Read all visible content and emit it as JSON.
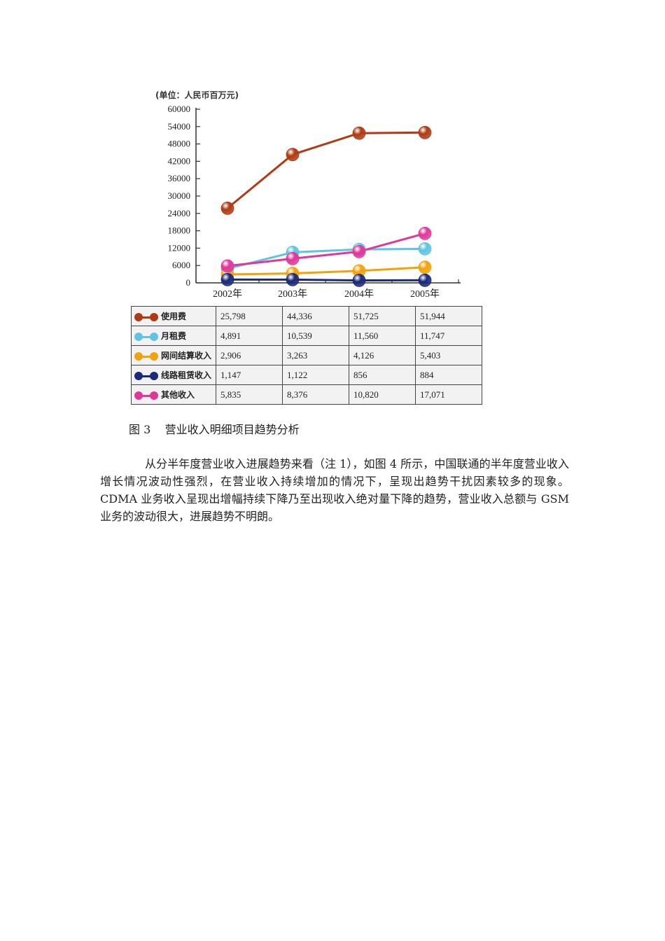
{
  "chart_data": {
    "type": "line",
    "unit_label": "(单位：人民币百万元)",
    "x": [
      "2002年",
      "2003年",
      "2004年",
      "2005年"
    ],
    "ylim": [
      0,
      60000
    ],
    "yticks": [
      "60000",
      "54000",
      "48000",
      "42000",
      "36000",
      "30000",
      "24000",
      "18000",
      "12000",
      "6000",
      "0"
    ],
    "series": [
      {
        "name": "使用费",
        "values": [
          25798,
          44336,
          51725,
          51944
        ],
        "display": [
          "25,798",
          "44,336",
          "51,725",
          "51,944"
        ],
        "color": "#b03a14"
      },
      {
        "name": "月租费",
        "values": [
          4891,
          10539,
          11560,
          11747
        ],
        "display": [
          "4,891",
          "10,539",
          "11,560",
          "11,747"
        ],
        "color": "#5fc4e0"
      },
      {
        "name": "网间结算收入",
        "values": [
          2906,
          3263,
          4126,
          5403
        ],
        "display": [
          "2,906",
          "3,263",
          "4,126",
          "5,403"
        ],
        "color": "#f2a20c"
      },
      {
        "name": "线路租赁收入",
        "values": [
          1147,
          1122,
          856,
          884
        ],
        "display": [
          "1,147",
          "1,122",
          "856",
          "884"
        ],
        "color": "#1a2a78"
      },
      {
        "name": "其他收入",
        "values": [
          5835,
          8376,
          10820,
          17071
        ],
        "display": [
          "5,835",
          "8,376",
          "10,820",
          "17,071"
        ],
        "color": "#e0379a"
      }
    ]
  },
  "caption": "图 3    营业收入明细项目趋势分析",
  "paragraph": "从分半年度营业收入进展趋势来看（注 1），如图 4 所示，中国联通的半年度营业收入增长情况波动性强烈，在营业收入持续增加的情况下，呈现出趋势干扰因素较多的现象。CDMA 业务收入呈现出增幅持续下降乃至出现收入绝对量下降的趋势，营业收入总额与 GSM 业务的波动很大，进展趋势不明朗。"
}
